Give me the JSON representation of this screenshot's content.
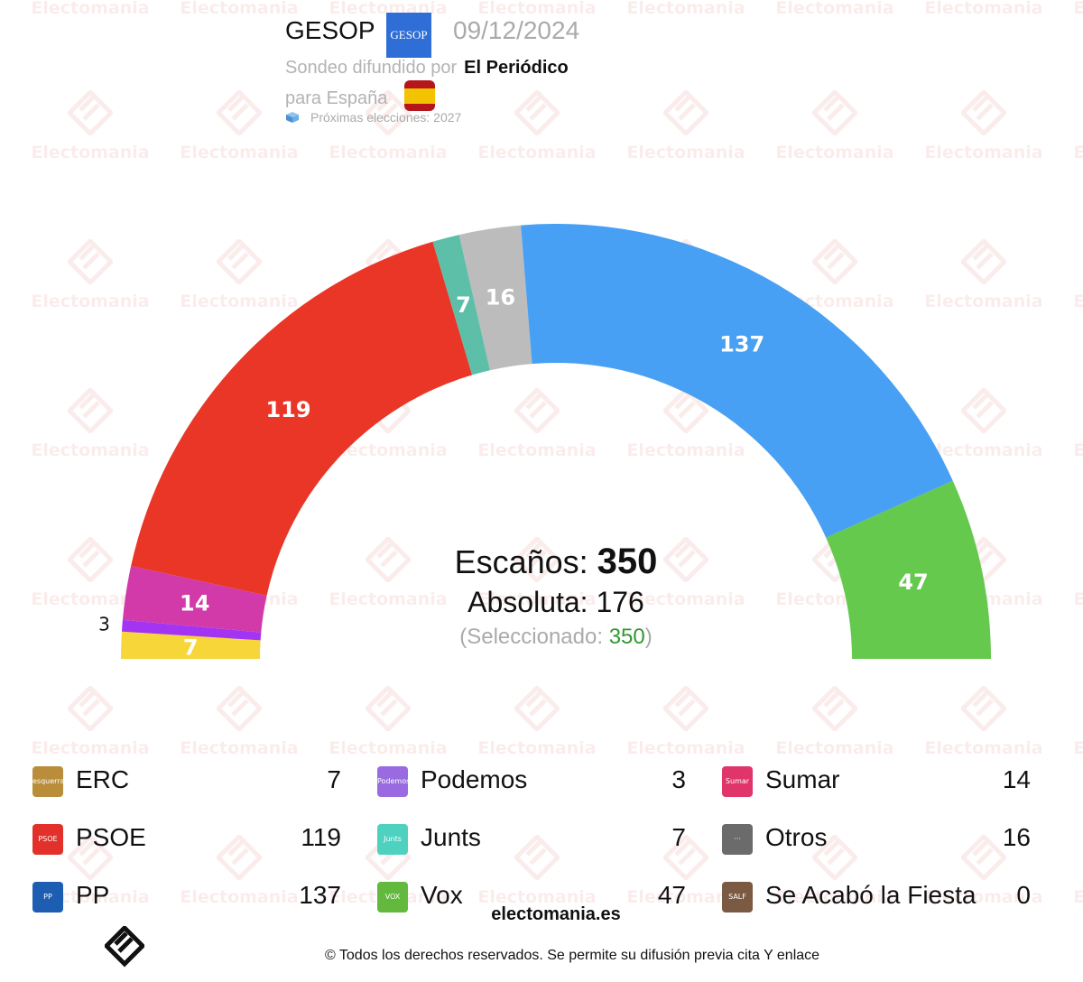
{
  "header": {
    "pollster": "GESOP",
    "pollster_logo_text": "GESOP",
    "date": "09/12/2024",
    "published_prefix": "Sondeo difundido por",
    "publisher": "El Periódico",
    "region": "para España",
    "next_elections": "Próximas elecciones: 2027"
  },
  "watermark_text": "Electomania",
  "center": {
    "seats_label": "Escaños:",
    "seats_total": "350",
    "majority_text": "Absoluta: 176",
    "selected_prefix": "(Seleccionado:",
    "selected_value": "350",
    "selected_suffix": ")"
  },
  "chart_data": {
    "type": "parliament_semicircle",
    "total_seats": 350,
    "majority": 176,
    "series": [
      {
        "name": "Junts",
        "seats": 7,
        "color": "#f7d63a"
      },
      {
        "name": "Podemos",
        "seats": 3,
        "color": "#a335f2"
      },
      {
        "name": "Sumar",
        "seats": 14,
        "color": "#d13aa8"
      },
      {
        "name": "PSOE",
        "seats": 119,
        "color": "#e93627"
      },
      {
        "name": "ERC",
        "seats": 7,
        "color": "#5ebfa9"
      },
      {
        "name": "Otros",
        "seats": 16,
        "color": "#bcbcbc"
      },
      {
        "name": "PP",
        "seats": 137,
        "color": "#47a0f3"
      },
      {
        "name": "Vox",
        "seats": 47,
        "color": "#65c94e"
      }
    ]
  },
  "legend": [
    {
      "name": "ERC",
      "seats": "7",
      "logo_color": "#b98d39",
      "logo_text": "esquerra"
    },
    {
      "name": "PSOE",
      "seats": "119",
      "logo_color": "#e2312b",
      "logo_text": "PSOE"
    },
    {
      "name": "PP",
      "seats": "137",
      "logo_color": "#1d5eb3",
      "logo_text": "PP"
    },
    {
      "name": "Podemos",
      "seats": "3",
      "logo_color": "#9a6be0",
      "logo_text": "Podemos"
    },
    {
      "name": "Junts",
      "seats": "7",
      "logo_color": "#4fd1c0",
      "logo_text": "Junts"
    },
    {
      "name": "Vox",
      "seats": "47",
      "logo_color": "#62b93d",
      "logo_text": "VOX"
    },
    {
      "name": "Sumar",
      "seats": "14",
      "logo_color": "#e0356a",
      "logo_text": "Sumar"
    },
    {
      "name": "Otros",
      "seats": "16",
      "logo_color": "#6b6b6b",
      "logo_text": "···"
    },
    {
      "name": "Se Acabó la Fiesta",
      "seats": "0",
      "logo_color": "#7b5a43",
      "logo_text": "SALF"
    }
  ],
  "footer": {
    "brand": "electomania.es",
    "copyright": "© Todos los derechos reservados. Se permite su difusión previa cita Y enlace"
  }
}
